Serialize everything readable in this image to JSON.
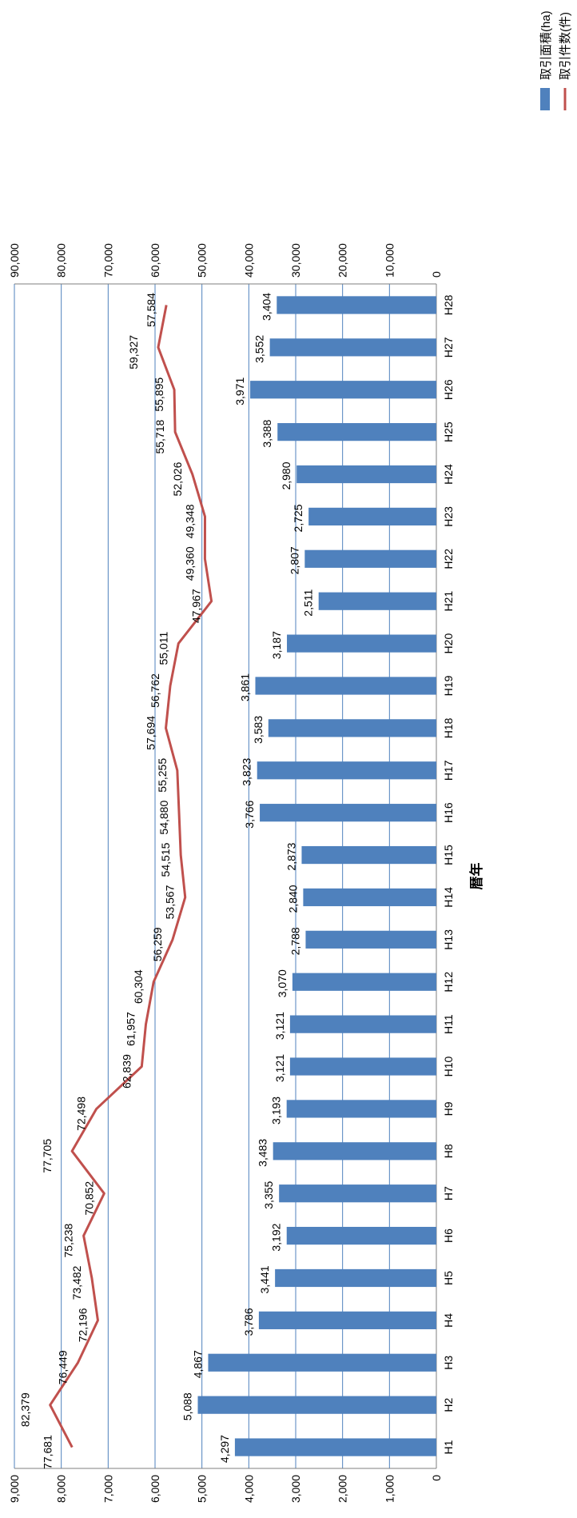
{
  "chart_data": {
    "type": "bar",
    "orientation": "rotated-90",
    "xlabel": "暦年",
    "categories": [
      "H1",
      "H2",
      "H3",
      "H4",
      "H5",
      "H6",
      "H7",
      "H8",
      "H9",
      "H10",
      "H11",
      "H12",
      "H13",
      "H14",
      "H15",
      "H16",
      "H17",
      "H18",
      "H19",
      "H20",
      "H21",
      "H22",
      "H23",
      "H24",
      "H25",
      "H26",
      "H27",
      "H28"
    ],
    "series": [
      {
        "name": "取引面積(ha)",
        "kind": "bar",
        "axis": "left",
        "color": "#4F81BD",
        "values": [
          4297,
          5088,
          4867,
          3786,
          3441,
          3192,
          3355,
          3483,
          3193,
          3121,
          3121,
          3070,
          2788,
          2840,
          2873,
          3766,
          3823,
          3583,
          3861,
          3187,
          2511,
          2807,
          2725,
          2980,
          3388,
          3971,
          3552,
          3404
        ],
        "labels": [
          "4,297",
          "5,088",
          "4,867",
          "3,786",
          "3,441",
          "3,192",
          "3,355",
          "3,483",
          "3,193",
          "3,121",
          "3,121",
          "3,070",
          "2,788",
          "2,840",
          "2,873",
          "3,766",
          "3,823",
          "3,583",
          "3,861",
          "3,187",
          "2,511",
          "2,807",
          "2,725",
          "2,980",
          "3,388",
          "3,971",
          "3,552",
          "3,404"
        ]
      },
      {
        "name": "取引件数(件)",
        "kind": "line",
        "axis": "right",
        "color": "#C0504D",
        "values": [
          77681,
          82379,
          76449,
          72196,
          73482,
          75238,
          70852,
          77705,
          72498,
          62839,
          61957,
          60304,
          56259,
          53567,
          54515,
          54880,
          55255,
          57694,
          56762,
          55011,
          47967,
          49360,
          49348,
          52026,
          55718,
          55895,
          59327,
          57584
        ],
        "labels": [
          "77,681",
          "82,379",
          "76,449",
          "72,196",
          "73,482",
          "75,238",
          "70,852",
          "77,705",
          "72,498",
          "62,839",
          "61,957",
          "60,304",
          "56,259",
          "53,567",
          "54,515",
          "54,880",
          "55,255",
          "57,694",
          "56,762",
          "55,011",
          "47,967",
          "49,360",
          "49,348",
          "52,026",
          "55,718",
          "55,895",
          "59,327",
          "57,584"
        ]
      }
    ],
    "y_left": {
      "range": [
        0,
        9000
      ],
      "ticks": [
        "0",
        "1,000",
        "2,000",
        "3,000",
        "4,000",
        "5,000",
        "6,000",
        "7,000",
        "8,000",
        "9,000"
      ]
    },
    "y_right": {
      "range": [
        0,
        90000
      ],
      "ticks": [
        "0",
        "10,000",
        "20,000",
        "30,000",
        "40,000",
        "50,000",
        "60,000",
        "70,000",
        "80,000",
        "90,000"
      ]
    },
    "grid": true,
    "legend_position": "right"
  }
}
